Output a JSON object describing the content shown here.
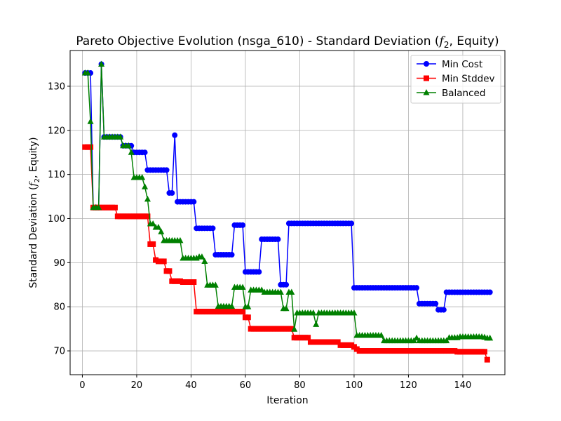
{
  "chart_data": {
    "type": "line",
    "title": "Pareto Objective Evolution (nsga_610) - Standard Deviation (",
    "title_math": "f",
    "title_math_sub": "2",
    "title_end": ", Equity)",
    "xlabel": "Iteration",
    "ylabel": "Standard Deviation (",
    "ylabel_math": "f",
    "ylabel_math_sub": "2",
    "ylabel_end": ", Equity)",
    "xlim": [
      -4.5,
      155.5
    ],
    "ylim": [
      64.6,
      138.1
    ],
    "xticks": [
      0,
      20,
      40,
      60,
      80,
      100,
      120,
      140
    ],
    "yticks": [
      70,
      80,
      90,
      100,
      110,
      120,
      130
    ],
    "grid": true,
    "legend_position": "top-right",
    "series": [
      {
        "name": "Min Cost",
        "color": "#0000ff",
        "marker": "circle",
        "steps": [
          [
            1,
            133
          ],
          [
            3,
            133
          ],
          [
            4,
            102.5
          ],
          [
            6,
            102.5
          ],
          [
            7,
            135
          ],
          [
            8,
            118.5
          ],
          [
            14,
            118.5
          ],
          [
            15,
            116.5
          ],
          [
            18,
            116.5
          ],
          [
            19,
            115
          ],
          [
            23,
            115
          ],
          [
            24,
            111
          ],
          [
            31,
            111
          ],
          [
            32,
            105.8
          ],
          [
            33,
            105.8
          ],
          [
            34,
            118.9
          ],
          [
            35,
            103.8
          ],
          [
            41,
            103.8
          ],
          [
            42,
            97.8
          ],
          [
            48,
            97.8
          ],
          [
            49,
            91.8
          ],
          [
            55,
            91.8
          ],
          [
            56,
            98.5
          ],
          [
            59,
            98.5
          ],
          [
            60,
            87.9
          ],
          [
            65,
            87.9
          ],
          [
            66,
            95.3
          ],
          [
            72,
            95.3
          ],
          [
            73,
            85
          ],
          [
            75,
            85
          ],
          [
            76,
            98.9
          ],
          [
            99,
            98.9
          ],
          [
            100,
            84.3
          ],
          [
            123,
            84.3
          ],
          [
            124,
            80.7
          ],
          [
            130,
            80.7
          ],
          [
            131,
            79.3
          ],
          [
            133,
            79.3
          ],
          [
            134,
            83.3
          ],
          [
            150,
            83.3
          ]
        ]
      },
      {
        "name": "Min Stddev",
        "color": "#ff0000",
        "marker": "square",
        "steps": [
          [
            1,
            116.2
          ],
          [
            3,
            116.2
          ],
          [
            4,
            102.5
          ],
          [
            12,
            102.5
          ],
          [
            13,
            100.5
          ],
          [
            24,
            100.5
          ],
          [
            25,
            94.2
          ],
          [
            26,
            94.2
          ],
          [
            27,
            90.6
          ],
          [
            28,
            90.3
          ],
          [
            30,
            90.3
          ],
          [
            31,
            88.1
          ],
          [
            32,
            88.1
          ],
          [
            33,
            85.8
          ],
          [
            36,
            85.8
          ],
          [
            37,
            85.6
          ],
          [
            41,
            85.6
          ],
          [
            42,
            78.9
          ],
          [
            59,
            78.9
          ],
          [
            60,
            77.6
          ],
          [
            61,
            77.6
          ],
          [
            62,
            75
          ],
          [
            77,
            75
          ],
          [
            78,
            73
          ],
          [
            83,
            73
          ],
          [
            84,
            72
          ],
          [
            94,
            72
          ],
          [
            95,
            71.3
          ],
          [
            99,
            71.3
          ],
          [
            100,
            70.9
          ],
          [
            101,
            70.4
          ],
          [
            102,
            70
          ],
          [
            137,
            70
          ],
          [
            138,
            69.8
          ],
          [
            148,
            69.8
          ],
          [
            149,
            68
          ]
        ]
      },
      {
        "name": "Balanced",
        "color": "#008000",
        "marker": "triangle",
        "steps": [
          [
            1,
            133
          ],
          [
            2,
            133
          ],
          [
            3,
            122
          ],
          [
            4,
            102.5
          ],
          [
            6,
            102.5
          ],
          [
            7,
            135
          ],
          [
            8,
            118.5
          ],
          [
            14,
            118.5
          ],
          [
            15,
            116.5
          ],
          [
            17,
            116.5
          ],
          [
            18,
            115
          ],
          [
            19,
            109.3
          ],
          [
            22,
            109.3
          ],
          [
            23,
            107.2
          ],
          [
            24,
            104.4
          ],
          [
            25,
            98.8
          ],
          [
            26,
            98.8
          ],
          [
            27,
            98
          ],
          [
            28,
            98
          ],
          [
            29,
            97
          ],
          [
            30,
            95
          ],
          [
            36,
            95
          ],
          [
            37,
            91
          ],
          [
            42,
            91
          ],
          [
            43,
            91.3
          ],
          [
            44,
            91.3
          ],
          [
            45,
            90.3
          ],
          [
            46,
            84.9
          ],
          [
            49,
            84.9
          ],
          [
            50,
            80.1
          ],
          [
            55,
            80.1
          ],
          [
            56,
            84.4
          ],
          [
            59,
            84.4
          ],
          [
            60,
            80
          ],
          [
            61,
            80
          ],
          [
            62,
            83.8
          ],
          [
            66,
            83.8
          ],
          [
            67,
            83.3
          ],
          [
            73,
            83.3
          ],
          [
            74,
            79.6
          ],
          [
            75,
            79.6
          ],
          [
            76,
            83.3
          ],
          [
            77,
            83.3
          ],
          [
            78,
            74.9
          ],
          [
            79,
            78.6
          ],
          [
            85,
            78.6
          ],
          [
            86,
            76
          ],
          [
            87,
            78.6
          ],
          [
            100,
            78.6
          ],
          [
            101,
            73.5
          ],
          [
            110,
            73.5
          ],
          [
            111,
            72.3
          ],
          [
            122,
            72.3
          ],
          [
            123,
            72.9
          ],
          [
            124,
            72.3
          ],
          [
            134,
            72.3
          ],
          [
            135,
            73
          ],
          [
            138,
            73
          ],
          [
            139,
            73.2
          ],
          [
            147,
            73.2
          ],
          [
            148,
            73.1
          ],
          [
            149,
            72.9
          ],
          [
            150,
            72.9
          ]
        ]
      }
    ]
  }
}
